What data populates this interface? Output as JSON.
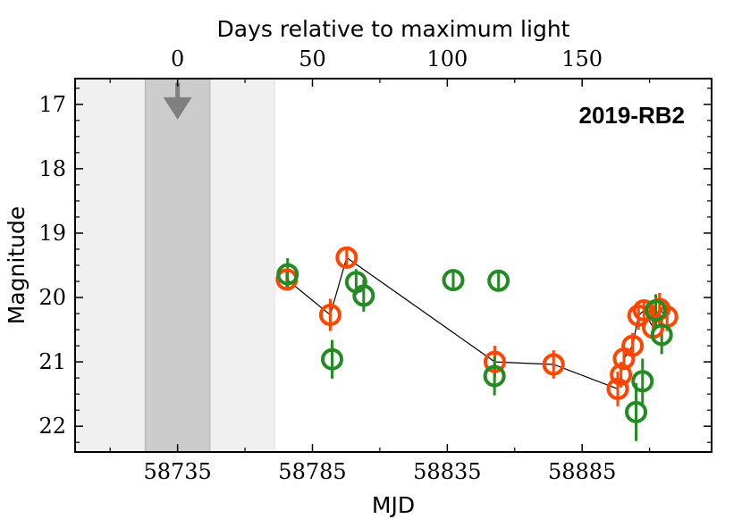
{
  "chart_data": {
    "type": "scatter",
    "title": "2019-RB2",
    "xlabel": "MJD",
    "ylabel": "Magnitude",
    "xlabel_top": "Days relative to maximum light",
    "xlim": [
      58697,
      58933
    ],
    "ylim": [
      22.4,
      16.6
    ],
    "y_inverted": true,
    "x_ticks": [
      58735,
      58785,
      58835,
      58885
    ],
    "x_tick_labels": [
      "58735",
      "58785",
      "58835",
      "58885"
    ],
    "y_ticks": [
      17,
      18,
      19,
      20,
      21,
      22
    ],
    "y_tick_labels": [
      "17",
      "18",
      "19",
      "20",
      "21",
      "22"
    ],
    "top_ticks": [
      0,
      50,
      100,
      150
    ],
    "top_tick_labels": [
      "0",
      "50",
      "100",
      "150"
    ],
    "top_axis_zero_mjd": 58735,
    "shaded_regions": [
      {
        "x_start": 58697,
        "x_end": 58771,
        "color": "#f0f0f0"
      },
      {
        "x_start": 58723,
        "x_end": 58747,
        "color": "#cccccc"
      }
    ],
    "upper_limit": {
      "x": 58735,
      "y": 17.0,
      "color": "#808080"
    },
    "series": [
      {
        "name": "orange",
        "color": "#ff4500",
        "points": [
          {
            "x": 58775.5,
            "y": 19.72,
            "err": 0.12
          },
          {
            "x": 58791.6,
            "y": 20.27,
            "err": 0.25
          },
          {
            "x": 58797.7,
            "y": 19.38,
            "err": 0.12
          },
          {
            "x": 58852.6,
            "y": 21.0,
            "err": 0.25
          },
          {
            "x": 58874.4,
            "y": 21.04,
            "err": 0.22
          },
          {
            "x": 58898.2,
            "y": 21.42,
            "err": 0.27
          },
          {
            "x": 58899.4,
            "y": 21.2,
            "err": 0.2
          },
          {
            "x": 58900.5,
            "y": 20.95,
            "err": 0.18
          },
          {
            "x": 58903.7,
            "y": 20.75,
            "err": 0.2
          },
          {
            "x": 58905.9,
            "y": 20.28,
            "err": 0.22
          },
          {
            "x": 58907.9,
            "y": 20.2,
            "err": 0.15
          },
          {
            "x": 58911.3,
            "y": 20.47,
            "err": 0.2
          },
          {
            "x": 58913.7,
            "y": 20.18,
            "err": 0.25
          },
          {
            "x": 58916.5,
            "y": 20.3,
            "err": 0.22
          }
        ],
        "line_connected": true
      },
      {
        "name": "green",
        "color": "#228b22",
        "points": [
          {
            "x": 58775.8,
            "y": 19.64,
            "err": 0.25
          },
          {
            "x": 58792.3,
            "y": 20.96,
            "err": 0.3
          },
          {
            "x": 58801.2,
            "y": 19.76,
            "err": 0.2
          },
          {
            "x": 58804.0,
            "y": 19.97,
            "err": 0.25
          },
          {
            "x": 58837.2,
            "y": 19.73,
            "err": 0.16
          },
          {
            "x": 58852.5,
            "y": 21.22,
            "err": 0.3
          },
          {
            "x": 58854.0,
            "y": 19.74,
            "err": 0.16
          },
          {
            "x": 58905.0,
            "y": 21.78,
            "err": 0.45
          },
          {
            "x": 58907.4,
            "y": 21.3,
            "err": 0.35
          },
          {
            "x": 58912.3,
            "y": 20.2,
            "err": 0.25
          },
          {
            "x": 58914.5,
            "y": 20.58,
            "err": 0.3
          }
        ],
        "line_connected": false
      }
    ]
  }
}
